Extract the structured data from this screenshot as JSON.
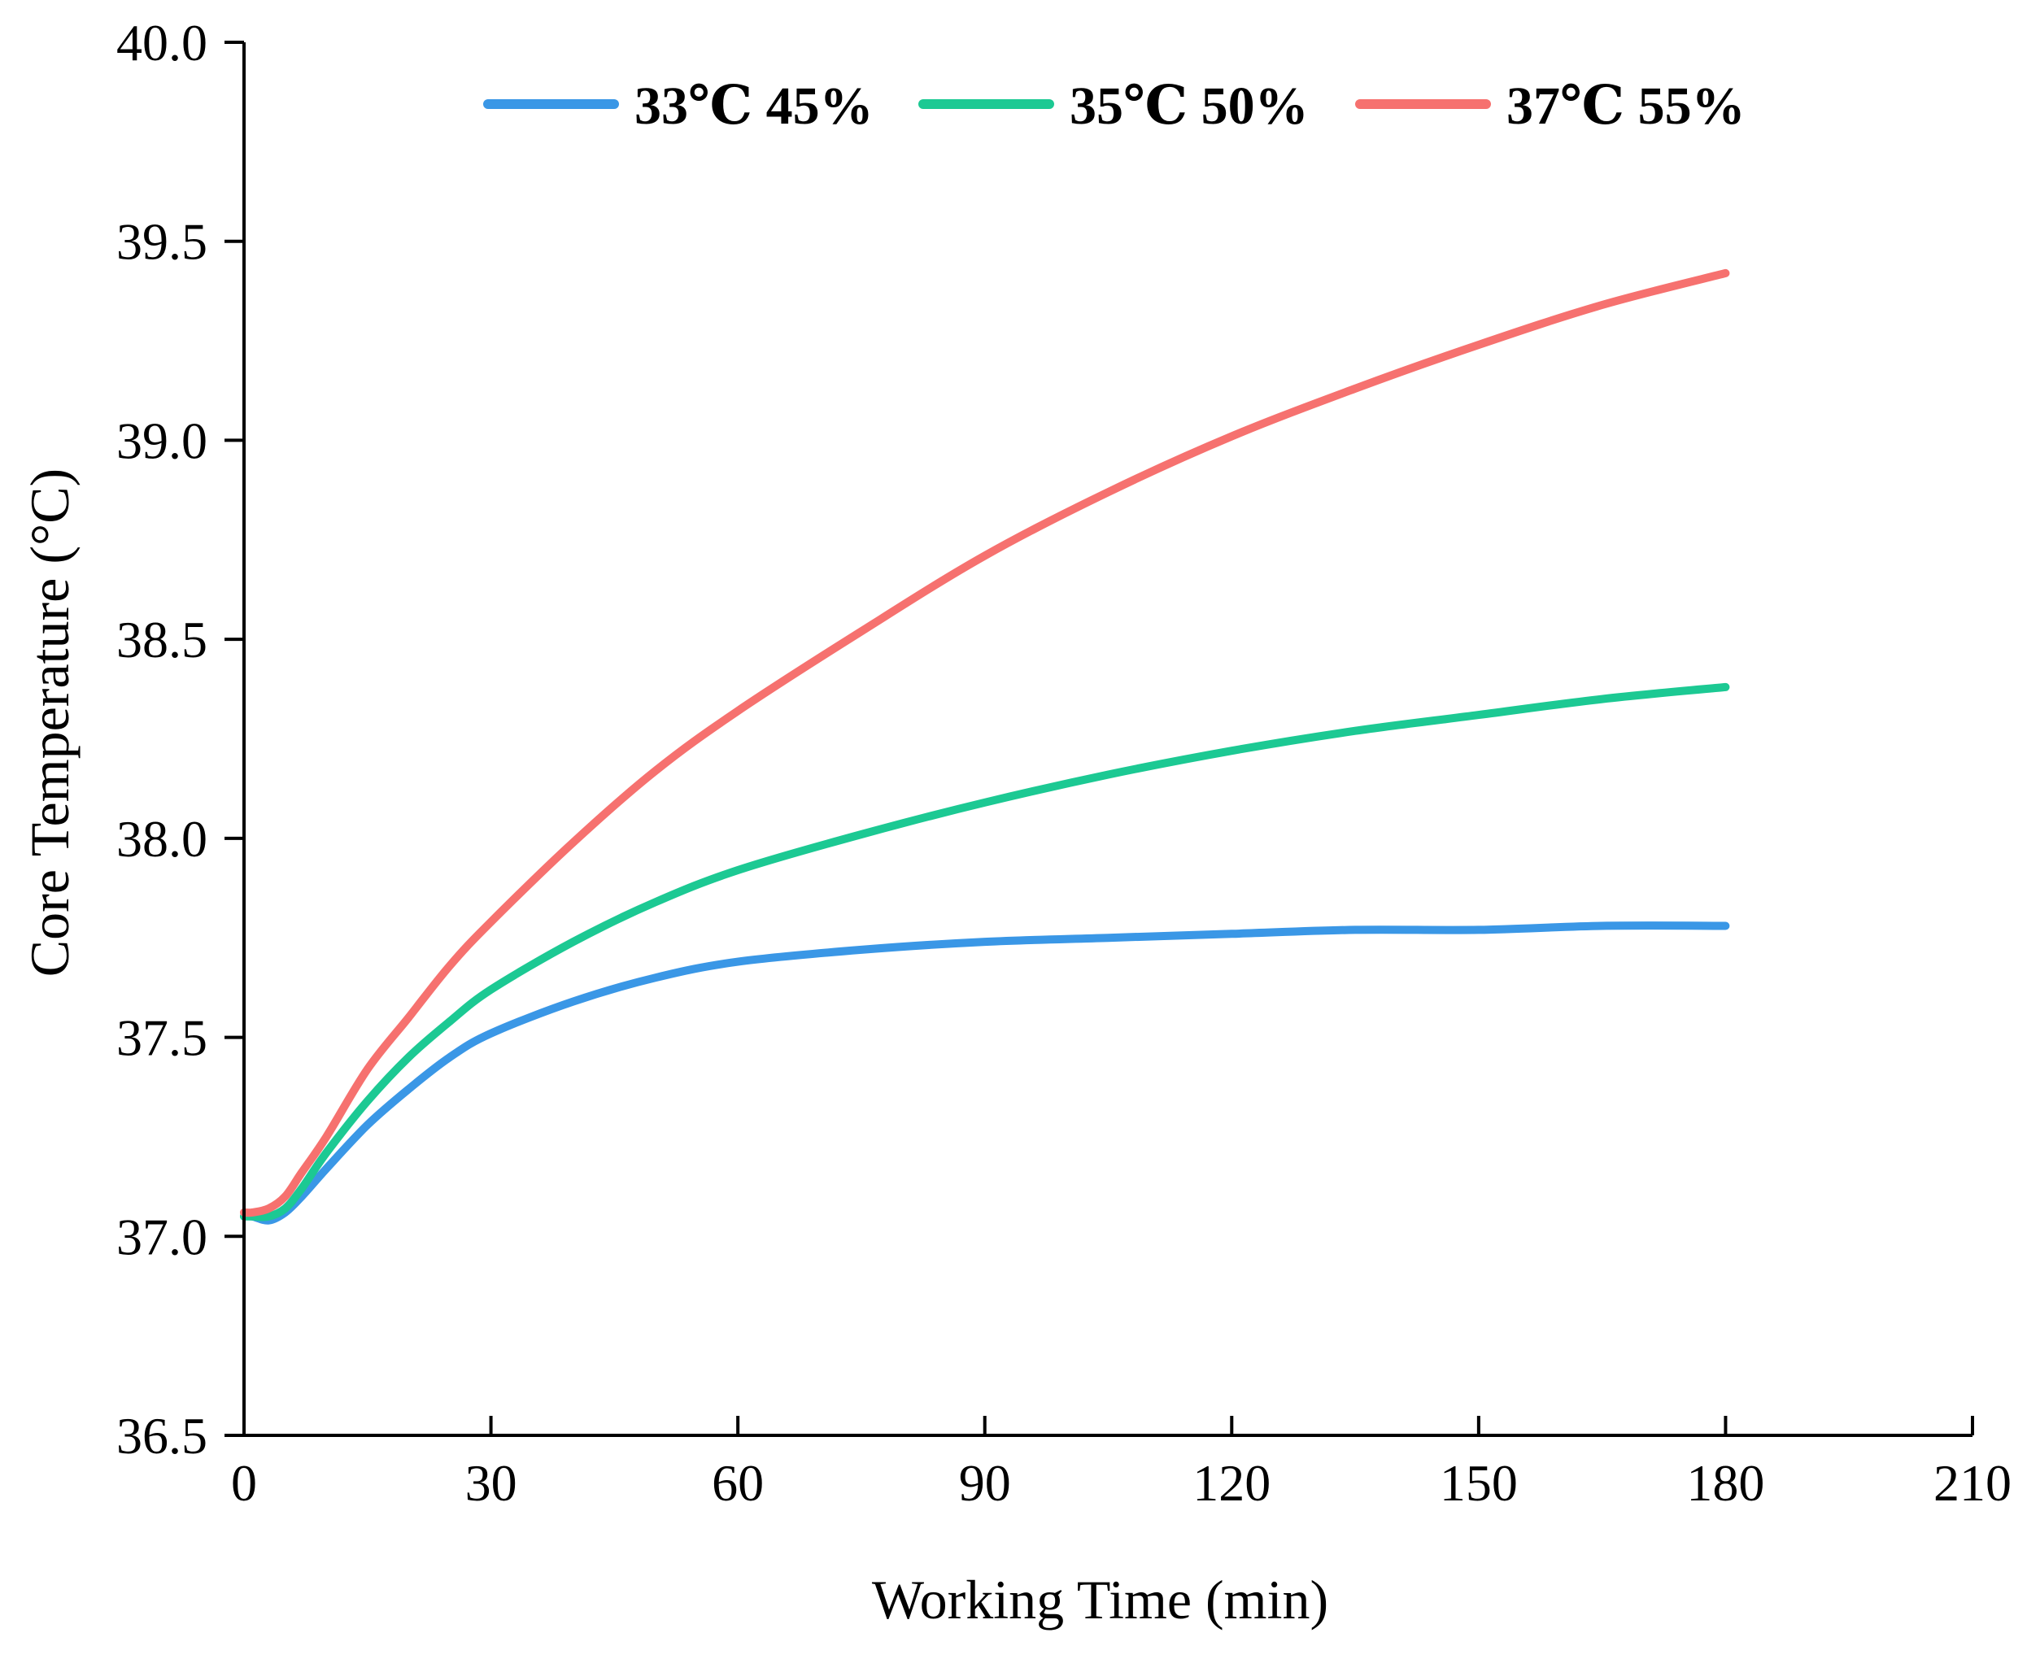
{
  "chart_data": {
    "type": "line",
    "title": "",
    "xlabel": "Working Time (min)",
    "ylabel": "Core Temperature (°C)",
    "xlim": [
      0,
      210
    ],
    "ylim": [
      36.5,
      40.0
    ],
    "xticks": [
      0,
      30,
      60,
      90,
      120,
      150,
      180,
      210
    ],
    "xtick_labels": [
      "0",
      "30",
      "60",
      "90",
      "120",
      "150",
      "180",
      "210"
    ],
    "yticks": [
      36.5,
      37.0,
      37.5,
      38.0,
      38.5,
      39.0,
      39.5,
      40.0
    ],
    "ytick_labels": [
      "36.5",
      "37.0",
      "37.5",
      "38.0",
      "38.5",
      "39.0",
      "39.5",
      "40.0"
    ],
    "grid": false,
    "legend_position": "top",
    "x": [
      0,
      1,
      3,
      5,
      7,
      10,
      15,
      20,
      25,
      30,
      40,
      50,
      60,
      75,
      90,
      105,
      120,
      135,
      150,
      165,
      180
    ],
    "series": [
      {
        "name": "33℃ 45%",
        "color": "#3a97e6",
        "values": [
          37.05,
          37.05,
          37.04,
          37.06,
          37.1,
          37.17,
          37.28,
          37.37,
          37.45,
          37.51,
          37.59,
          37.65,
          37.69,
          37.72,
          37.74,
          37.75,
          37.76,
          37.77,
          37.77,
          37.78,
          37.78
        ]
      },
      {
        "name": "35℃ 50%",
        "color": "#1cc993",
        "values": [
          37.05,
          37.05,
          37.05,
          37.07,
          37.12,
          37.21,
          37.34,
          37.45,
          37.54,
          37.62,
          37.74,
          37.84,
          37.92,
          38.01,
          38.09,
          38.16,
          38.22,
          38.27,
          38.31,
          38.35,
          38.38
        ]
      },
      {
        "name": "37℃ 55%",
        "color": "#f6716f",
        "values": [
          37.06,
          37.06,
          37.07,
          37.1,
          37.16,
          37.25,
          37.42,
          37.55,
          37.68,
          37.79,
          37.99,
          38.17,
          38.32,
          38.52,
          38.71,
          38.87,
          39.01,
          39.13,
          39.24,
          39.34,
          39.42
        ]
      }
    ]
  }
}
